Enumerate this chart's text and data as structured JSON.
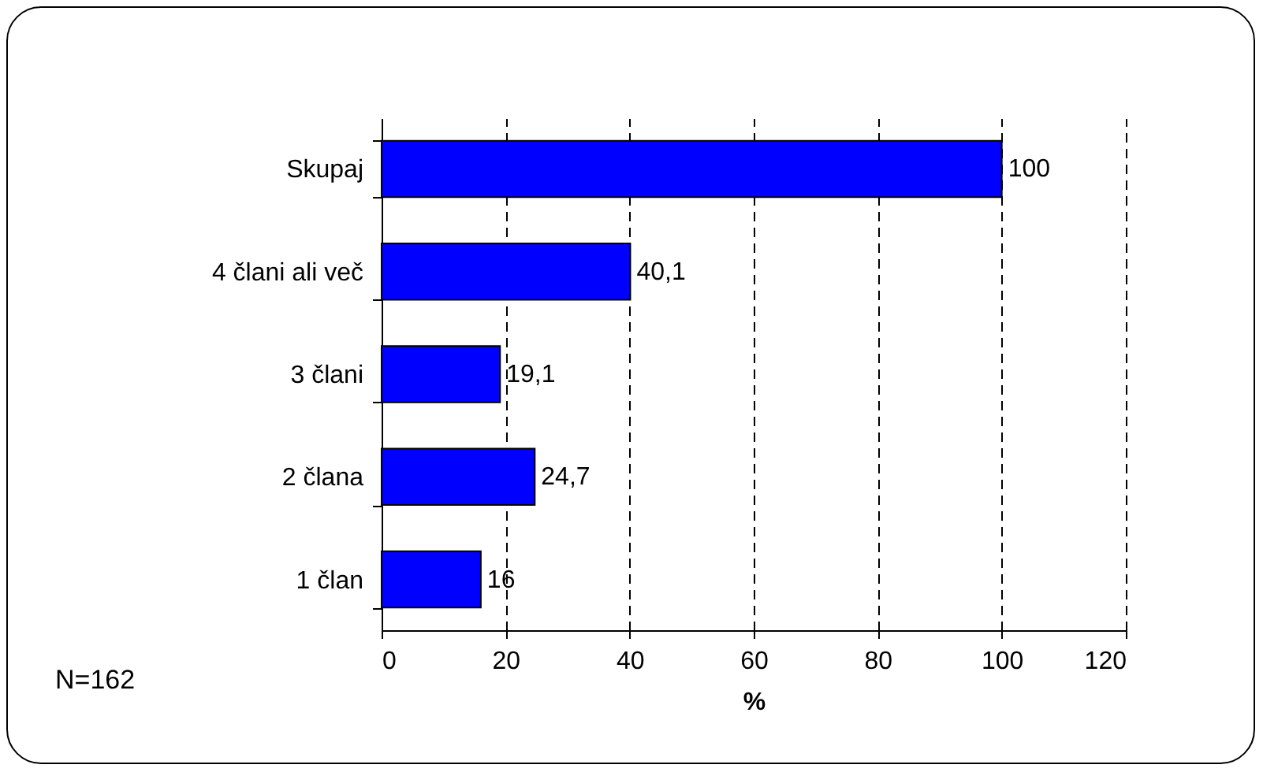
{
  "chart_data": {
    "type": "bar",
    "orientation": "horizontal",
    "categories": [
      "Skupaj",
      "4 člani ali več",
      "3 člani",
      "2 člana",
      "1 član"
    ],
    "values": [
      100,
      40.1,
      19.1,
      24.7,
      16
    ],
    "value_labels": [
      "100",
      "40,1",
      "19,1",
      "24,7",
      "16"
    ],
    "color": "#0000ff",
    "xlim": [
      0,
      120
    ],
    "xticks": [
      0,
      20,
      40,
      60,
      80,
      100,
      120
    ],
    "xlabel": "%",
    "grid": "x",
    "annotations": [
      "N=162"
    ]
  }
}
